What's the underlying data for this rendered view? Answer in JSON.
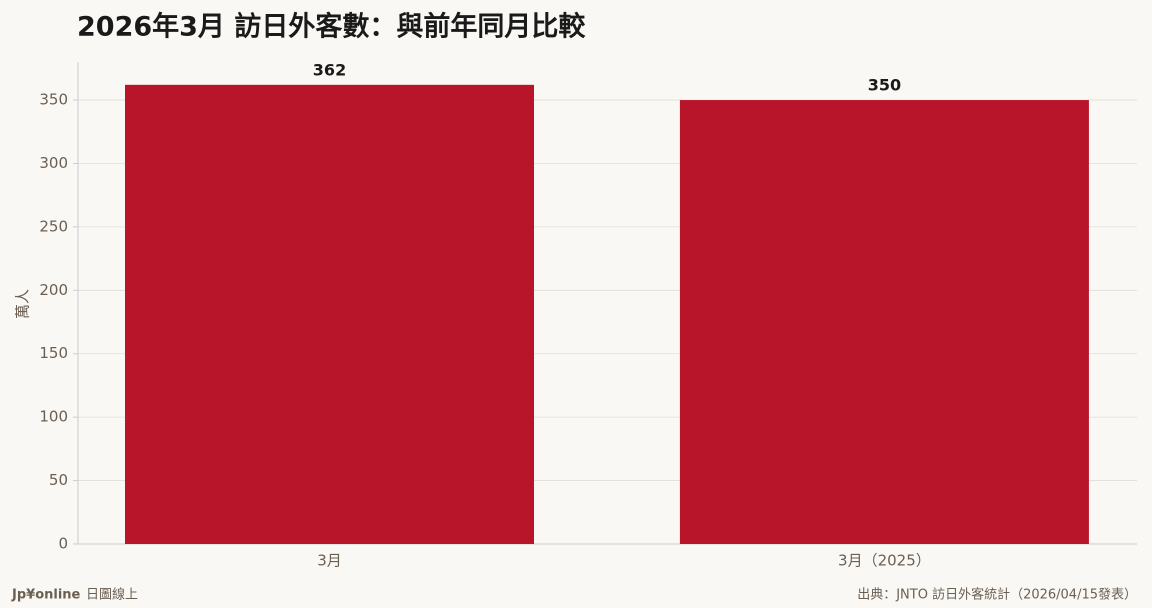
{
  "chart_data": {
    "type": "bar",
    "title": "2026年3月 訪日外客數：與前年同月比較",
    "y_label": "萬人",
    "categories": [
      "3月",
      "3月（2025）"
    ],
    "values": [
      362,
      350
    ],
    "color": "#b8152b",
    "ylim": [
      0,
      380
    ],
    "yticks": [
      0,
      50,
      100,
      150,
      200,
      250,
      300,
      350
    ],
    "grid": true
  },
  "footer": {
    "brand": "Jp¥online",
    "brand_sub": "日圖線上",
    "source": "出典：JNTO 訪日外客統計（2026/04/15發表）"
  }
}
